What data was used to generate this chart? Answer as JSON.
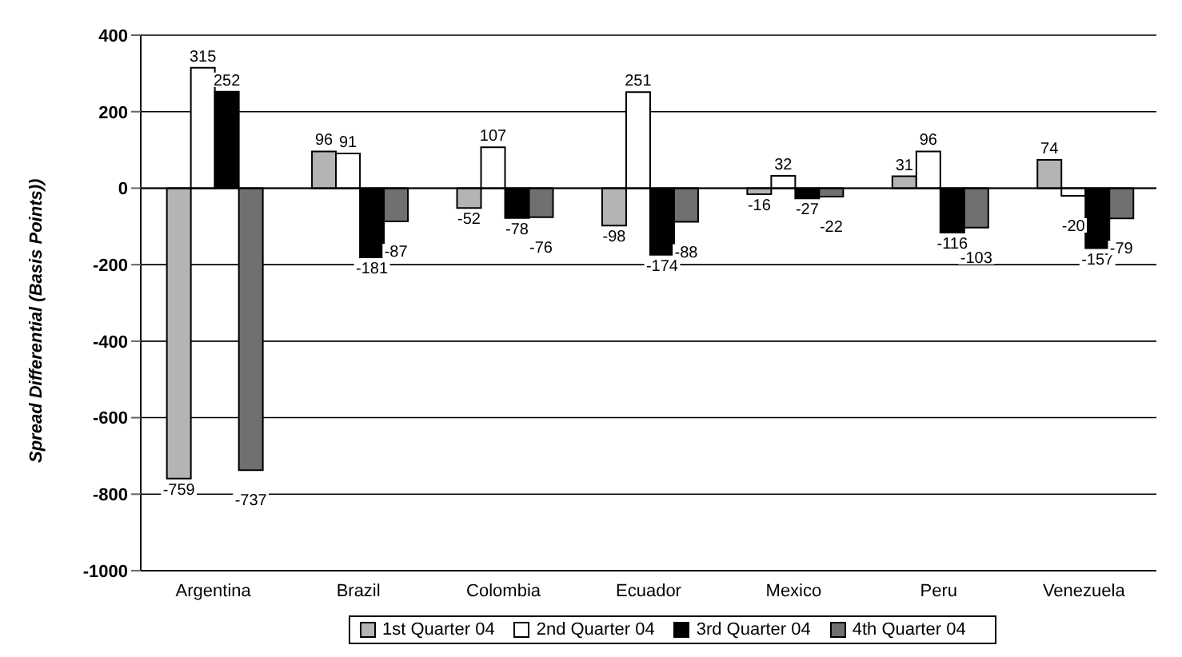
{
  "chart_data": {
    "type": "bar",
    "ylabel": "Spread Differential (Basis Points))",
    "categories": [
      "Argentina",
      "Brazil",
      "Colombia",
      "Ecuador",
      "Mexico",
      "Peru",
      "Venezuela"
    ],
    "series": [
      {
        "name": "1st Quarter 04",
        "color": "#b4b4b4",
        "values": [
          -759,
          96,
          -52,
          -98,
          -16,
          31,
          74
        ]
      },
      {
        "name": "2nd Quarter 04",
        "color": "#ffffff",
        "values": [
          315,
          91,
          107,
          251,
          32,
          96,
          -20
        ]
      },
      {
        "name": "3rd Quarter 04",
        "color": "#000000",
        "values": [
          252,
          -181,
          -78,
          -174,
          -27,
          -116,
          -157
        ]
      },
      {
        "name": "4th Quarter 04",
        "color": "#707070",
        "values": [
          -737,
          -87,
          -76,
          -88,
          -22,
          -103,
          -79
        ]
      }
    ],
    "ylim": [
      -1000,
      400
    ],
    "yticks": [
      -1000,
      -800,
      -600,
      -400,
      -200,
      0,
      200,
      400
    ],
    "grid": "y",
    "legend": "bottom",
    "data_labels": true
  }
}
